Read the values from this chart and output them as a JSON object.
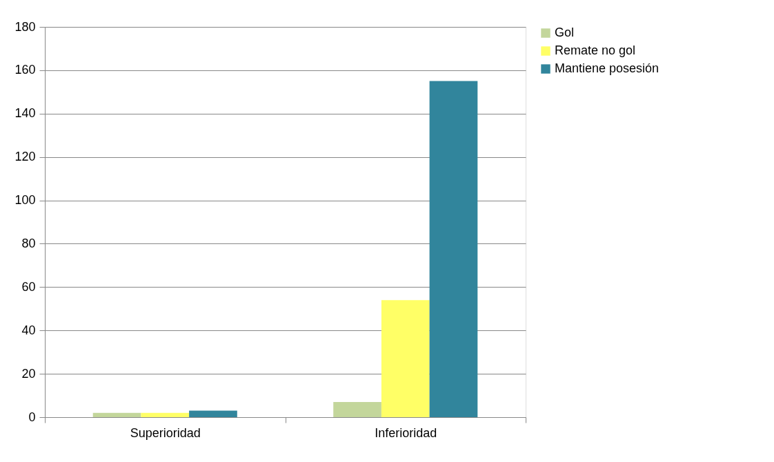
{
  "chart_data": {
    "type": "bar",
    "categories": [
      "Superioridad",
      "Inferioridad"
    ],
    "series": [
      {
        "name": "Gol",
        "color": "#c3d69b",
        "values": [
          2,
          7
        ]
      },
      {
        "name": "Remate no gol",
        "color": "#ffff66",
        "values": [
          2,
          54
        ]
      },
      {
        "name": "Mantiene posesión",
        "color": "#31859c",
        "values": [
          3,
          155
        ]
      }
    ],
    "ylim": [
      0,
      180
    ],
    "yticks": [
      0,
      20,
      40,
      60,
      80,
      100,
      120,
      140,
      160,
      180
    ],
    "grid": "y",
    "legend": "right"
  }
}
